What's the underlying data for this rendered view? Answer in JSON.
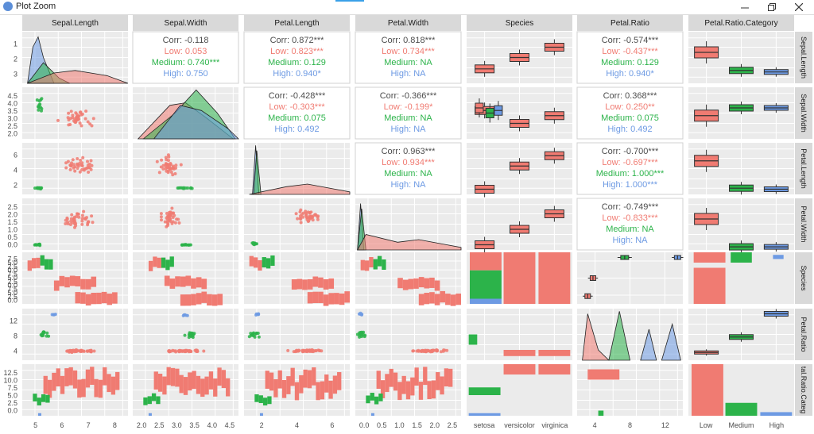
{
  "window": {
    "title": "Plot Zoom"
  },
  "colors": {
    "low": "#f07b72",
    "medium": "#2cb34a",
    "high": "#6d9ae3",
    "strip": "#d9d9d9",
    "panel": "#ebebeb",
    "grid": "#ffffff",
    "text": "#4d4d4d"
  },
  "chart_data": {
    "type": "scatter",
    "title": "",
    "vars": [
      "Sepal.Length",
      "Sepal.Width",
      "Petal.Length",
      "Petal.Width",
      "Species",
      "Petal.Ratio",
      "Petal.Ratio.Category"
    ],
    "strip_labels_right": [
      "Sepal.Length",
      "Sepal.Width",
      "Petal.Length",
      "Petal.Width",
      "Species",
      "Petal.Ratio",
      "tal.Ratio.Categ"
    ],
    "groups": [
      "Low",
      "Medium",
      "High"
    ],
    "y_tick_labels": {
      "Sepal.Length": [
        "1",
        "2",
        "3"
      ],
      "Sepal.Width": [
        "4.5",
        "4.0",
        "3.5",
        "3.0",
        "2.5",
        "2.0"
      ],
      "Petal.Length": [
        "6",
        "4",
        "2"
      ],
      "Petal.Width": [
        "2.5",
        "2.0",
        "1.5",
        "1.0",
        "0.5",
        "0.0"
      ],
      "Species": [
        "7.5",
        "5.0",
        "2.5",
        "0.0",
        "7.5",
        "5.0",
        "2.5",
        "0.0",
        "7.5",
        "5.0",
        "2.5",
        "0.0"
      ],
      "Petal.Ratio": [
        "12",
        "8",
        "4"
      ],
      "Petal.Ratio.Category": [
        "12.5",
        "10.0",
        "7.5",
        "5.0",
        "2.5",
        "0.0"
      ]
    },
    "x_tick_labels": {
      "Sepal.Length": [
        "5",
        "6",
        "7",
        "8"
      ],
      "Sepal.Width": [
        "2.0",
        "2.5",
        "3.0",
        "3.5",
        "4.0",
        "4.5"
      ],
      "Petal.Length": [
        "2",
        "4",
        "6"
      ],
      "Petal.Width": [
        "0.0",
        "0.5",
        "1.0",
        "1.5",
        "2.0",
        "2.5"
      ],
      "Species": [
        "setosa",
        "versicolor",
        "virginica"
      ],
      "Petal.Ratio": [
        "4",
        "8",
        "12"
      ],
      "Petal.Ratio.Category": [
        "Low",
        "Medium",
        "High"
      ]
    },
    "correlations": [
      {
        "row": 0,
        "col": 1,
        "labels": [
          "Corr: -0.118",
          "Low: 0.053",
          "Medium: 0.740***",
          "High: 0.750"
        ]
      },
      {
        "row": 0,
        "col": 2,
        "labels": [
          "Corr: 0.872***",
          "Low: 0.823***",
          "Medium: 0.129",
          "High: 0.940*"
        ]
      },
      {
        "row": 0,
        "col": 3,
        "labels": [
          "Corr: 0.818***",
          "Low: 0.734***",
          "Medium:  NA",
          "High:  NA"
        ]
      },
      {
        "row": 0,
        "col": 5,
        "labels": [
          "Corr: -0.574***",
          "Low: -0.437***",
          "Medium: 0.129",
          "High: 0.940*"
        ]
      },
      {
        "row": 1,
        "col": 2,
        "labels": [
          "Corr: -0.428***",
          "Low: -0.303***",
          "Medium: 0.075",
          "High: 0.492"
        ]
      },
      {
        "row": 1,
        "col": 3,
        "labels": [
          "Corr: -0.366***",
          "Low: -0.199*",
          "Medium:  NA",
          "High:  NA"
        ]
      },
      {
        "row": 1,
        "col": 5,
        "labels": [
          "Corr: 0.368***",
          "Low: 0.250**",
          "Medium: 0.075",
          "High: 0.492"
        ]
      },
      {
        "row": 2,
        "col": 3,
        "labels": [
          "Corr: 0.963***",
          "Low: 0.934***",
          "Medium:  NA",
          "High:  NA"
        ]
      },
      {
        "row": 2,
        "col": 5,
        "labels": [
          "Corr: -0.700***",
          "Low: -0.697***",
          "Medium: 1.000***",
          "High: 1.000***"
        ]
      },
      {
        "row": 3,
        "col": 5,
        "labels": [
          "Corr: -0.749***",
          "Low: -0.833***",
          "Medium:  NA",
          "High:  NA"
        ]
      }
    ]
  }
}
